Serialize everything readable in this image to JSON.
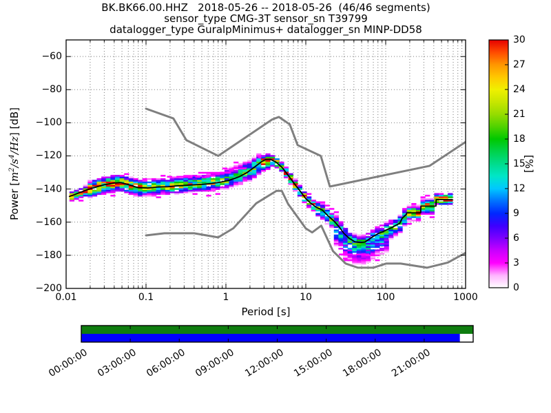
{
  "titles": {
    "line1": "BK.BK66.00.HHZ   2018-05-26 -- 2018-05-26  (46/46 segments)",
    "line2": "sensor_type CMG-3T sensor_sn T39799",
    "line3": "datalogger_type GuralpMinimus+ datalogger_sn MINP-DD58"
  },
  "axes": {
    "x_label": "Period [s]",
    "y_label": {
      "pre": "Power [",
      "m": "m",
      "e2": "2",
      "s": "/s",
      "e4": "4",
      "hz": "/Hz",
      "post": "] [dB]"
    },
    "x_ticks": [
      "0.01",
      "0.1",
      "1",
      "10",
      "100",
      "1000"
    ],
    "x_tick_values": [
      0.01,
      0.1,
      1,
      10,
      100,
      1000
    ],
    "y_ticks": [
      "−60",
      "−80",
      "−100",
      "−120",
      "−140",
      "−160",
      "−180",
      "−200"
    ],
    "y_tick_values": [
      -60,
      -80,
      -100,
      -120,
      -140,
      -160,
      -180,
      -200
    ],
    "x_range": [
      0.01,
      1000
    ],
    "y_range": [
      -200,
      -50
    ]
  },
  "colorbar": {
    "label": "[%]",
    "ticks": [
      "0",
      "3",
      "6",
      "9",
      "12",
      "15",
      "18",
      "21",
      "24",
      "27",
      "30"
    ],
    "tick_values": [
      0,
      3,
      6,
      9,
      12,
      15,
      18,
      21,
      24,
      27,
      30
    ],
    "range": [
      0,
      30
    ],
    "stops": [
      [
        0,
        "#ffffff"
      ],
      [
        1.5,
        "#ffb3ff"
      ],
      [
        3,
        "#ff00ff"
      ],
      [
        4.5,
        "#c800ff"
      ],
      [
        6,
        "#7d00ff"
      ],
      [
        7.5,
        "#3c00ff"
      ],
      [
        9,
        "#0028ff"
      ],
      [
        10.5,
        "#0073ff"
      ],
      [
        12,
        "#00c8ff"
      ],
      [
        13.5,
        "#00e6c8"
      ],
      [
        15,
        "#00dc8c"
      ],
      [
        16.5,
        "#00d24b"
      ],
      [
        18,
        "#00c800"
      ],
      [
        19.5,
        "#50d200"
      ],
      [
        21,
        "#96dc00"
      ],
      [
        22.5,
        "#c8e600"
      ],
      [
        24,
        "#f0f000"
      ],
      [
        25.5,
        "#ffc800"
      ],
      [
        27,
        "#ff9600"
      ],
      [
        28.5,
        "#ff4b00"
      ],
      [
        30,
        "#e60000"
      ]
    ]
  },
  "chart_data": {
    "type": "heatmap",
    "title": "BK.BK66.00.HHZ 2018-05-26 -- 2018-05-26 (46/46 segments)",
    "xlabel": "Period [s]",
    "ylabel": "Power [m^2/s^4/Hz] [dB]",
    "zlabel": "[%]",
    "xlim": [
      0.01,
      1000
    ],
    "ylim": [
      -200,
      -50
    ],
    "zlim": [
      0,
      30
    ],
    "x_scale": "log",
    "grid": true,
    "noise_models": {
      "color": "#7f7f7f",
      "line_width": 3,
      "nlnm": [
        [
          0.1,
          -168.0
        ],
        [
          0.17,
          -166.7
        ],
        [
          0.4,
          -166.7
        ],
        [
          0.8,
          -169.2
        ],
        [
          1.24,
          -163.7
        ],
        [
          2.4,
          -148.6
        ],
        [
          4.3,
          -141.1
        ],
        [
          5.0,
          -141.1
        ],
        [
          6.0,
          -149.0
        ],
        [
          10.0,
          -163.8
        ],
        [
          12.0,
          -166.2
        ],
        [
          15.6,
          -162.1
        ],
        [
          21.9,
          -177.5
        ],
        [
          31.6,
          -185.0
        ],
        [
          45.0,
          -187.5
        ],
        [
          70.0,
          -187.5
        ],
        [
          101.0,
          -185.0
        ],
        [
          154.0,
          -185.0
        ],
        [
          328.0,
          -187.5
        ],
        [
          600.0,
          -184.4
        ],
        [
          1000.0,
          -178.5
        ]
      ],
      "nhnm": [
        [
          0.1,
          -91.5
        ],
        [
          0.22,
          -97.4
        ],
        [
          0.32,
          -110.5
        ],
        [
          0.8,
          -120.0
        ],
        [
          3.8,
          -98.0
        ],
        [
          4.6,
          -96.5
        ],
        [
          6.3,
          -101.0
        ],
        [
          7.9,
          -113.5
        ],
        [
          15.4,
          -120.0
        ],
        [
          20.0,
          -138.5
        ],
        [
          354.8,
          -126.0
        ],
        [
          1000.0,
          -111.6
        ]
      ]
    },
    "mean_curve": {
      "color": "#000000",
      "line_width": 1.8,
      "points": [
        [
          0.011,
          -144.5
        ],
        [
          0.014,
          -142.6
        ],
        [
          0.018,
          -140.6
        ],
        [
          0.023,
          -139.0
        ],
        [
          0.03,
          -137.4
        ],
        [
          0.04,
          -136.4
        ],
        [
          0.048,
          -136.1
        ],
        [
          0.06,
          -137.3
        ],
        [
          0.08,
          -139.2
        ],
        [
          0.105,
          -139.4
        ],
        [
          0.14,
          -138.8
        ],
        [
          0.19,
          -138.6
        ],
        [
          0.26,
          -138.0
        ],
        [
          0.36,
          -137.6
        ],
        [
          0.5,
          -137.2
        ],
        [
          0.65,
          -136.7
        ],
        [
          0.85,
          -135.9
        ],
        [
          1.1,
          -134.7
        ],
        [
          1.45,
          -132.7
        ],
        [
          1.85,
          -130.0
        ],
        [
          2.3,
          -126.6
        ],
        [
          2.8,
          -123.5
        ],
        [
          3.15,
          -122.2
        ],
        [
          3.6,
          -122.1
        ],
        [
          4.2,
          -123.6
        ],
        [
          5.1,
          -127.2
        ],
        [
          6.2,
          -132.6
        ],
        [
          7.4,
          -137.6
        ],
        [
          8.6,
          -141.6
        ],
        [
          10.0,
          -145.8
        ],
        [
          11.5,
          -148.5
        ],
        [
          13.5,
          -151.0
        ],
        [
          16.0,
          -152.6
        ],
        [
          19.0,
          -156.2
        ],
        [
          23.0,
          -159.8
        ],
        [
          26.5,
          -163.2
        ],
        [
          30.0,
          -166.8
        ],
        [
          35.0,
          -169.8
        ],
        [
          41.0,
          -171.8
        ],
        [
          48.0,
          -172.3
        ],
        [
          55.0,
          -172.0
        ],
        [
          62.0,
          -170.3
        ],
        [
          70.0,
          -168.6
        ],
        [
          80.0,
          -167.0
        ],
        [
          92.0,
          -165.8
        ],
        [
          105.0,
          -164.4
        ],
        [
          120.0,
          -163.2
        ],
        [
          135.0,
          -161.8
        ],
        [
          150.0,
          -160.7
        ],
        [
          160.0,
          -157.8
        ],
        [
          182.0,
          -155.2
        ],
        [
          183.0,
          -154.4
        ],
        [
          274.0,
          -154.4
        ],
        [
          276.0,
          -150.3
        ],
        [
          426.0,
          -150.3
        ],
        [
          428.0,
          -146.4
        ],
        [
          684.0,
          -146.4
        ]
      ]
    },
    "histogram_band": {
      "bins": 84,
      "p_min": 0.011,
      "p_max": 684,
      "db_cell": 1,
      "regions": [
        {
          "p0": 0.011,
          "p1": 0.018,
          "hi": 2.5,
          "lo": 3.5,
          "pmax": 28
        },
        {
          "p0": 0.018,
          "p1": 0.09,
          "hi": 4.5,
          "lo": 5.0,
          "pmax": 25
        },
        {
          "p0": 0.09,
          "p1": 0.3,
          "hi": 5.0,
          "lo": 4.5,
          "pmax": 20
        },
        {
          "p0": 0.3,
          "p1": 0.9,
          "hi": 5.5,
          "lo": 4.0,
          "pmax": 21
        },
        {
          "p0": 0.9,
          "p1": 1.8,
          "hi": 7.0,
          "lo": 4.5,
          "pmax": 16
        },
        {
          "p0": 1.8,
          "p1": 2.8,
          "hi": 5.5,
          "lo": 6.5,
          "pmax": 17
        },
        {
          "p0": 2.8,
          "p1": 3.8,
          "hi": 3.2,
          "lo": 5.5,
          "pmax": 30
        },
        {
          "p0": 3.8,
          "p1": 7.0,
          "hi": 2.8,
          "lo": 3.2,
          "pmax": 28
        },
        {
          "p0": 7.0,
          "p1": 14.0,
          "hi": 3.0,
          "lo": 3.5,
          "pmax": 26
        },
        {
          "p0": 14.0,
          "p1": 22.0,
          "hi": 3.5,
          "lo": 5.0,
          "pmax": 20
        },
        {
          "p0": 22.0,
          "p1": 115.0,
          "hi": 4.5,
          "lo": 13.0,
          "pmax": 14
        },
        {
          "p0": 115.0,
          "p1": 180.0,
          "hi": 4.5,
          "lo": 6.0,
          "pmax": 18
        },
        {
          "p0": 180.0,
          "p1": 430.0,
          "hi": 4.0,
          "lo": 4.5,
          "pmax": 24
        },
        {
          "p0": 430.0,
          "p1": 684.0,
          "hi": 3.5,
          "lo": 3.0,
          "pmax": 30
        }
      ]
    },
    "outlier_rows": {
      "color": "#ff00ff",
      "segments": [
        {
          "p0": 0.9,
          "p1": 2.05,
          "db": -127.6
        },
        {
          "p0": 0.45,
          "p1": 1.15,
          "db": -130.2
        },
        {
          "p0": 0.16,
          "p1": 0.62,
          "db": -132.6
        },
        {
          "p0": 2.35,
          "p1": 2.75,
          "db": -120.8
        },
        {
          "p0": 30.0,
          "p1": 95.0,
          "db": -183.0
        },
        {
          "p0": 26.0,
          "p1": 70.0,
          "db": -179.5
        }
      ]
    }
  },
  "timeline": {
    "labels": [
      "00:00:00",
      "03:00:00",
      "06:00:00",
      "09:00:00",
      "12:00:00",
      "15:00:00",
      "18:00:00",
      "21:00:00"
    ],
    "tick_hours": [
      0,
      3,
      6,
      9,
      12,
      15,
      18,
      21
    ],
    "total_hours": 24,
    "green": "#0f7d0f",
    "blue": "#0000ff",
    "blue_fraction": 0.966
  },
  "colors": {
    "background": "#ffffff",
    "frame": "#000000",
    "grid": "#666666"
  }
}
